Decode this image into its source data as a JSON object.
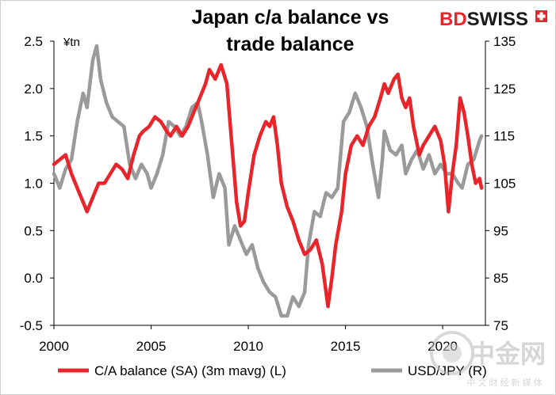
{
  "brand": {
    "name_bd": "BD",
    "name_swiss": "SWISS",
    "red": "#e8252b",
    "dark": "#1a1a1a"
  },
  "watermark": {
    "text": "中金网",
    "subtext": "中 文 财 经 新 媒 体"
  },
  "chart_data": {
    "type": "line",
    "title_lines": [
      "Japan c/a balance vs",
      "trade balance"
    ],
    "x_ticks": [
      "2000",
      "2005",
      "2010",
      "2015",
      "2020"
    ],
    "xlim": [
      2000,
      2022.2
    ],
    "y_left": {
      "unit": "¥tn",
      "ticks": [
        "2.5",
        "2.0",
        "1.5",
        "1.0",
        "0.5",
        "0.0",
        "-0.5"
      ],
      "ylim": [
        -0.5,
        2.5
      ]
    },
    "y_right": {
      "ticks": [
        "135",
        "125",
        "115",
        "105",
        "95",
        "85",
        "75"
      ],
      "ylim": [
        75,
        135
      ]
    },
    "grid": false,
    "legend_position": "bottom",
    "series": [
      {
        "name": "C/A balance (SA) (3m mavg) (L)",
        "axis": "left",
        "color": "#e8252b",
        "points": [
          [
            2000.0,
            1.2
          ],
          [
            2000.3,
            1.25
          ],
          [
            2000.6,
            1.3
          ],
          [
            2000.9,
            1.1
          ],
          [
            2001.2,
            0.95
          ],
          [
            2001.5,
            0.8
          ],
          [
            2001.7,
            0.7
          ],
          [
            2002.0,
            0.85
          ],
          [
            2002.3,
            1.0
          ],
          [
            2002.6,
            1.0
          ],
          [
            2002.9,
            1.1
          ],
          [
            2003.2,
            1.2
          ],
          [
            2003.5,
            1.15
          ],
          [
            2003.8,
            1.05
          ],
          [
            2004.1,
            1.3
          ],
          [
            2004.4,
            1.5
          ],
          [
            2004.6,
            1.55
          ],
          [
            2004.9,
            1.6
          ],
          [
            2005.2,
            1.7
          ],
          [
            2005.5,
            1.65
          ],
          [
            2005.8,
            1.55
          ],
          [
            2006.0,
            1.5
          ],
          [
            2006.3,
            1.6
          ],
          [
            2006.6,
            1.5
          ],
          [
            2006.9,
            1.6
          ],
          [
            2007.2,
            1.75
          ],
          [
            2007.5,
            1.9
          ],
          [
            2007.8,
            2.05
          ],
          [
            2008.0,
            2.2
          ],
          [
            2008.3,
            2.1
          ],
          [
            2008.6,
            2.25
          ],
          [
            2008.9,
            2.05
          ],
          [
            2009.0,
            1.8
          ],
          [
            2009.2,
            1.3
          ],
          [
            2009.4,
            0.8
          ],
          [
            2009.6,
            0.55
          ],
          [
            2009.8,
            0.6
          ],
          [
            2010.0,
            0.9
          ],
          [
            2010.3,
            1.3
          ],
          [
            2010.6,
            1.5
          ],
          [
            2010.9,
            1.65
          ],
          [
            2011.1,
            1.6
          ],
          [
            2011.3,
            1.7
          ],
          [
            2011.5,
            1.4
          ],
          [
            2011.7,
            1.0
          ],
          [
            2012.0,
            0.75
          ],
          [
            2012.3,
            0.6
          ],
          [
            2012.6,
            0.4
          ],
          [
            2012.9,
            0.25
          ],
          [
            2013.2,
            0.3
          ],
          [
            2013.5,
            0.4
          ],
          [
            2013.8,
            0.15
          ],
          [
            2014.0,
            -0.15
          ],
          [
            2014.1,
            -0.3
          ],
          [
            2014.3,
            0.0
          ],
          [
            2014.5,
            0.35
          ],
          [
            2014.8,
            0.7
          ],
          [
            2015.0,
            1.1
          ],
          [
            2015.3,
            1.4
          ],
          [
            2015.6,
            1.5
          ],
          [
            2015.9,
            1.4
          ],
          [
            2016.2,
            1.6
          ],
          [
            2016.5,
            1.7
          ],
          [
            2016.8,
            1.9
          ],
          [
            2017.0,
            2.05
          ],
          [
            2017.2,
            1.95
          ],
          [
            2017.5,
            2.1
          ],
          [
            2017.7,
            2.15
          ],
          [
            2017.9,
            1.9
          ],
          [
            2018.1,
            1.8
          ],
          [
            2018.3,
            1.9
          ],
          [
            2018.5,
            1.6
          ],
          [
            2018.8,
            1.3
          ],
          [
            2019.0,
            1.4
          ],
          [
            2019.3,
            1.5
          ],
          [
            2019.6,
            1.6
          ],
          [
            2019.9,
            1.45
          ],
          [
            2020.1,
            1.2
          ],
          [
            2020.3,
            0.7
          ],
          [
            2020.5,
            1.1
          ],
          [
            2020.7,
            1.4
          ],
          [
            2020.9,
            1.9
          ],
          [
            2021.1,
            1.75
          ],
          [
            2021.3,
            1.5
          ],
          [
            2021.5,
            1.2
          ],
          [
            2021.7,
            1.0
          ],
          [
            2021.9,
            1.05
          ],
          [
            2022.0,
            0.95
          ]
        ]
      },
      {
        "name": "USD/JPY (R)",
        "axis": "right",
        "color": "#9a9a9a",
        "points": [
          [
            2000.0,
            107
          ],
          [
            2000.3,
            104
          ],
          [
            2000.6,
            108
          ],
          [
            2000.9,
            110
          ],
          [
            2001.2,
            118
          ],
          [
            2001.5,
            124
          ],
          [
            2001.7,
            121
          ],
          [
            2002.0,
            131
          ],
          [
            2002.2,
            134
          ],
          [
            2002.4,
            127
          ],
          [
            2002.7,
            122
          ],
          [
            2003.0,
            119
          ],
          [
            2003.3,
            118
          ],
          [
            2003.6,
            117
          ],
          [
            2003.9,
            109
          ],
          [
            2004.2,
            106
          ],
          [
            2004.5,
            109
          ],
          [
            2004.8,
            107
          ],
          [
            2005.0,
            104
          ],
          [
            2005.3,
            107
          ],
          [
            2005.6,
            111
          ],
          [
            2005.9,
            118
          ],
          [
            2006.2,
            117
          ],
          [
            2006.5,
            115
          ],
          [
            2006.8,
            117
          ],
          [
            2007.1,
            121
          ],
          [
            2007.4,
            122
          ],
          [
            2007.6,
            118
          ],
          [
            2007.9,
            111
          ],
          [
            2008.2,
            102
          ],
          [
            2008.5,
            107
          ],
          [
            2008.8,
            104
          ],
          [
            2009.0,
            92
          ],
          [
            2009.3,
            96
          ],
          [
            2009.6,
            93
          ],
          [
            2009.9,
            90
          ],
          [
            2010.2,
            92
          ],
          [
            2010.5,
            87
          ],
          [
            2010.8,
            84
          ],
          [
            2011.1,
            82
          ],
          [
            2011.4,
            81
          ],
          [
            2011.7,
            77
          ],
          [
            2012.0,
            77
          ],
          [
            2012.3,
            81
          ],
          [
            2012.6,
            79
          ],
          [
            2012.9,
            82
          ],
          [
            2013.1,
            92
          ],
          [
            2013.4,
            99
          ],
          [
            2013.7,
            98
          ],
          [
            2014.0,
            103
          ],
          [
            2014.3,
            102
          ],
          [
            2014.6,
            104
          ],
          [
            2014.9,
            118
          ],
          [
            2015.2,
            120
          ],
          [
            2015.5,
            124
          ],
          [
            2015.8,
            121
          ],
          [
            2016.1,
            117
          ],
          [
            2016.4,
            109
          ],
          [
            2016.7,
            102
          ],
          [
            2016.9,
            110
          ],
          [
            2017.0,
            116
          ],
          [
            2017.3,
            112
          ],
          [
            2017.6,
            111
          ],
          [
            2017.9,
            113
          ],
          [
            2018.1,
            107
          ],
          [
            2018.4,
            110
          ],
          [
            2018.7,
            112
          ],
          [
            2019.0,
            108
          ],
          [
            2019.3,
            111
          ],
          [
            2019.6,
            107
          ],
          [
            2019.9,
            109
          ],
          [
            2020.2,
            107
          ],
          [
            2020.5,
            107
          ],
          [
            2020.8,
            105
          ],
          [
            2021.0,
            104
          ],
          [
            2021.3,
            109
          ],
          [
            2021.6,
            110
          ],
          [
            2021.9,
            114
          ],
          [
            2022.0,
            115
          ]
        ]
      }
    ]
  }
}
